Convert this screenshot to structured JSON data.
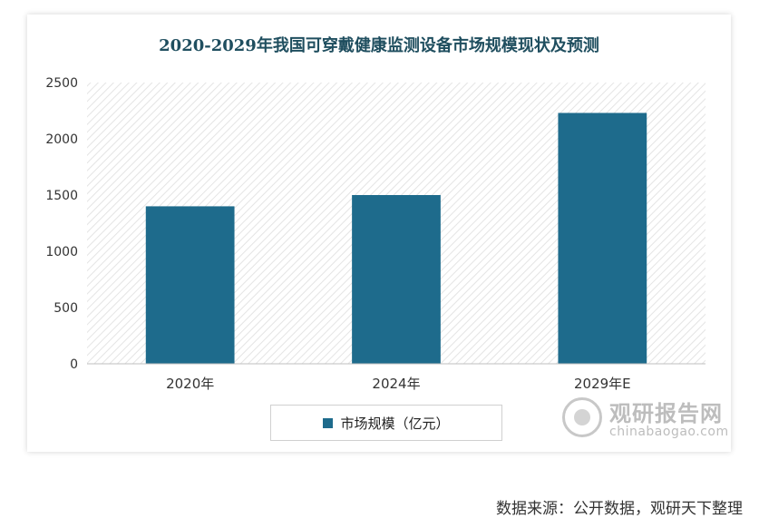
{
  "chart_data": {
    "type": "bar",
    "title": "2020-2029年我国可穿戴健康监测设备市场规模现状及预测",
    "categories": [
      "2020年",
      "2024年",
      "2029年E"
    ],
    "series": [
      {
        "name": "市场规模（亿元）",
        "values": [
          1400,
          1500,
          2230
        ]
      }
    ],
    "ylim": [
      0,
      2500
    ],
    "yticks": [
      0,
      500,
      1000,
      1500,
      2000,
      2500
    ],
    "grid": false,
    "legend_position": "bottom",
    "bar_color": "#1e6b8c"
  },
  "watermark": {
    "cn": "观研报告网",
    "en": "chinabaogao.com"
  },
  "source": "数据来源：公开数据，观研天下整理"
}
